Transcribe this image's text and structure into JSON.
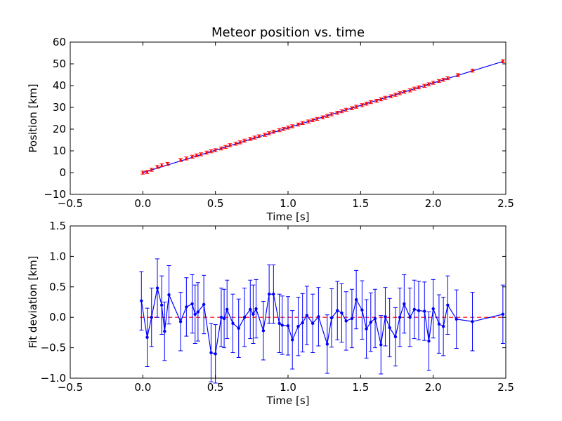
{
  "colors": {
    "background": "#ffffff",
    "fit_line": "#0000ff",
    "data_points": "#ff0000",
    "deviation_series": "#0000ff",
    "zero_line": "#ff0000"
  },
  "chart_data": [
    {
      "type": "line",
      "title": "Meteor position vs. time",
      "xlabel": "Time [s]",
      "ylabel": "Position [km]",
      "xlim": [
        -0.5,
        2.5
      ],
      "ylim": [
        -10,
        60
      ],
      "xticks": [
        -0.5,
        0.0,
        0.5,
        1.0,
        1.5,
        2.0,
        2.5
      ],
      "xtick_labels": [
        "−0.5",
        "0.0",
        "0.5",
        "1.0",
        "1.5",
        "2.0",
        "2.5"
      ],
      "yticks": [
        -10,
        0,
        10,
        20,
        30,
        40,
        50,
        60
      ],
      "ytick_labels": [
        "−10",
        "0",
        "10",
        "20",
        "30",
        "40",
        "50",
        "60"
      ],
      "grid": false,
      "series": [
        {
          "style": "line",
          "x": [
            0.0,
            2.48
          ],
          "y": [
            0.0,
            51.1
          ]
        },
        {
          "style": "points-with-error",
          "error": 0.7,
          "x": [
            0.0,
            0.03,
            0.06,
            0.1,
            0.13,
            0.17,
            0.26,
            0.3,
            0.34,
            0.37,
            0.4,
            0.44,
            0.47,
            0.5,
            0.54,
            0.57,
            0.6,
            0.64,
            0.67,
            0.7,
            0.74,
            0.77,
            0.8,
            0.84,
            0.87,
            0.9,
            0.94,
            0.97,
            1.0,
            1.03,
            1.07,
            1.1,
            1.14,
            1.17,
            1.2,
            1.24,
            1.27,
            1.3,
            1.34,
            1.37,
            1.4,
            1.44,
            1.47,
            1.51,
            1.54,
            1.57,
            1.61,
            1.64,
            1.67,
            1.71,
            1.74,
            1.77,
            1.8,
            1.84,
            1.87,
            1.9,
            1.94,
            1.97,
            2.0,
            2.04,
            2.07,
            2.1,
            2.17,
            2.27,
            2.48
          ],
          "y": [
            0.0,
            0.3,
            1.3,
            2.6,
            3.4,
            4.0,
            5.8,
            6.5,
            7.3,
            7.9,
            8.4,
            9.2,
            9.8,
            10.3,
            11.1,
            11.8,
            12.6,
            13.3,
            13.9,
            14.7,
            15.5,
            16.1,
            16.7,
            17.4,
            18.1,
            18.8,
            19.5,
            20.1,
            20.7,
            21.3,
            22.1,
            22.8,
            23.5,
            24.1,
            24.7,
            25.4,
            26.1,
            26.8,
            27.5,
            28.2,
            28.9,
            29.6,
            30.3,
            31.0,
            31.7,
            32.4,
            33.0,
            33.7,
            34.4,
            35.1,
            35.8,
            36.5,
            37.2,
            37.8,
            38.6,
            39.2,
            39.9,
            40.6,
            41.3,
            42.1,
            42.7,
            43.4,
            44.8,
            46.9,
            51.2
          ]
        }
      ]
    },
    {
      "type": "line",
      "xlabel": "Time [s]",
      "ylabel": "Fit deviation [km]",
      "xlim": [
        -0.5,
        2.5
      ],
      "ylim": [
        -1.0,
        1.5
      ],
      "xticks": [
        -0.5,
        0.0,
        0.5,
        1.0,
        1.5,
        2.0,
        2.5
      ],
      "xtick_labels": [
        "−0.5",
        "0.0",
        "0.5",
        "1.0",
        "1.5",
        "2.0",
        "2.5"
      ],
      "yticks": [
        -1.0,
        -0.5,
        0.0,
        0.5,
        1.0,
        1.5
      ],
      "ytick_labels": [
        "−1.0",
        "−0.5",
        "0.0",
        "0.5",
        "1.0",
        "1.5"
      ],
      "grid": false,
      "series": [
        {
          "style": "dashed-line",
          "x": [
            -0.02,
            2.48
          ],
          "y": [
            0.0,
            0.0
          ]
        },
        {
          "style": "line-points-with-error",
          "error": 0.48,
          "x": [
            -0.01,
            0.03,
            0.06,
            0.1,
            0.13,
            0.15,
            0.18,
            0.26,
            0.3,
            0.34,
            0.36,
            0.38,
            0.42,
            0.47,
            0.5,
            0.54,
            0.56,
            0.58,
            0.62,
            0.66,
            0.7,
            0.74,
            0.76,
            0.78,
            0.83,
            0.87,
            0.9,
            0.94,
            0.96,
            1.0,
            1.03,
            1.07,
            1.1,
            1.13,
            1.17,
            1.21,
            1.27,
            1.3,
            1.34,
            1.37,
            1.4,
            1.44,
            1.47,
            1.51,
            1.54,
            1.57,
            1.6,
            1.64,
            1.67,
            1.7,
            1.74,
            1.77,
            1.8,
            1.84,
            1.87,
            1.9,
            1.94,
            1.97,
            2.0,
            2.04,
            2.07,
            2.1,
            2.16,
            2.27,
            2.48
          ],
          "y": [
            0.27,
            -0.33,
            0.0,
            0.48,
            0.2,
            -0.23,
            0.37,
            -0.07,
            0.17,
            0.22,
            0.05,
            0.09,
            0.21,
            -0.58,
            -0.6,
            0.0,
            -0.02,
            0.13,
            -0.1,
            -0.18,
            0.0,
            0.13,
            0.05,
            0.14,
            -0.22,
            0.38,
            0.38,
            -0.1,
            -0.13,
            -0.14,
            -0.37,
            -0.15,
            -0.09,
            0.03,
            -0.1,
            0.01,
            -0.44,
            -0.01,
            0.11,
            0.07,
            -0.06,
            -0.02,
            0.29,
            0.12,
            -0.19,
            -0.08,
            -0.02,
            -0.45,
            0.01,
            -0.17,
            -0.32,
            0.0,
            0.22,
            0.0,
            0.13,
            0.11,
            0.1,
            -0.39,
            0.14,
            -0.11,
            -0.15,
            0.2,
            -0.03,
            -0.07,
            0.05
          ]
        }
      ]
    }
  ]
}
